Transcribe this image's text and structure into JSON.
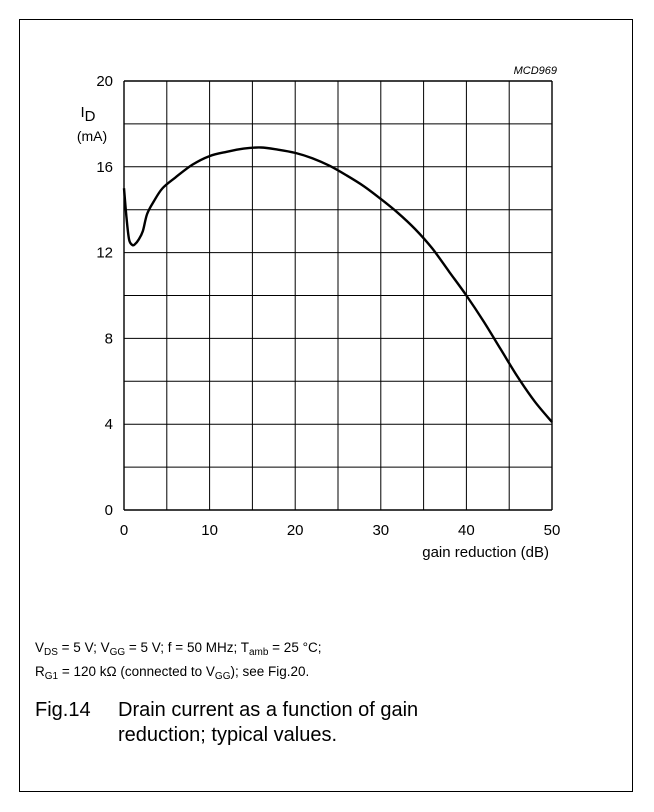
{
  "chart_data": {
    "type": "line",
    "code": "MCD969",
    "ylabel_symbol": "I",
    "ylabel_subscript": "D",
    "ylabel_unit": "(mA)",
    "xlabel": "gain reduction (dB)",
    "xlim": [
      0,
      50
    ],
    "ylim": [
      0,
      20
    ],
    "x_ticks": [
      0,
      10,
      20,
      30,
      40,
      50
    ],
    "y_ticks": [
      0,
      4,
      8,
      12,
      16,
      20
    ],
    "grid": true,
    "series": [
      {
        "x": [
          0,
          0.3,
          0.6,
          1.0,
          1.3,
          1.7,
          2.2,
          2.7,
          3.5,
          4.5,
          6,
          8,
          10,
          12,
          14,
          16,
          18,
          20,
          22,
          24,
          26,
          28,
          30,
          32,
          34,
          36,
          38,
          40,
          42,
          44,
          46,
          48,
          50
        ],
        "y": [
          15.0,
          13.6,
          12.6,
          12.35,
          12.4,
          12.6,
          13.0,
          13.8,
          14.4,
          15.0,
          15.5,
          16.1,
          16.5,
          16.7,
          16.85,
          16.9,
          16.8,
          16.65,
          16.4,
          16.05,
          15.6,
          15.1,
          14.5,
          13.85,
          13.1,
          12.2,
          11.1,
          10.0,
          8.8,
          7.5,
          6.2,
          5.05,
          4.1
        ]
      }
    ]
  },
  "conditions": {
    "line1": {
      "v1": "V",
      "v1_sub": "DS",
      "v1_eq": " = 5 V; ",
      "v2": "V",
      "v2_sub": "GG",
      "v2_eq": " = 5 V; f = 50 MHz; ",
      "t": "T",
      "t_sub": "amb",
      "t_eq": " = 25 °C;"
    },
    "line2": {
      "r": "R",
      "r_sub": "G1",
      "r_eq": " = 120 kΩ (connected to ",
      "v": "V",
      "v_sub": "GG",
      "tail": "); see Fig.20."
    }
  },
  "caption": {
    "fig": "Fig.14",
    "line1": "Drain current as a function of gain",
    "line2": "reduction; typical values."
  }
}
